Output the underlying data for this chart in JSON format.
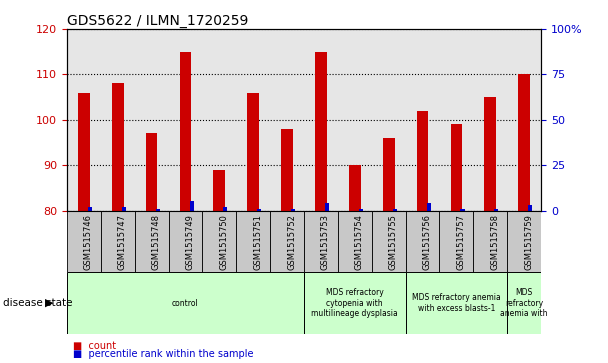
{
  "title": "GDS5622 / ILMN_1720259",
  "samples": [
    "GSM1515746",
    "GSM1515747",
    "GSM1515748",
    "GSM1515749",
    "GSM1515750",
    "GSM1515751",
    "GSM1515752",
    "GSM1515753",
    "GSM1515754",
    "GSM1515755",
    "GSM1515756",
    "GSM1515757",
    "GSM1515758",
    "GSM1515759"
  ],
  "count_values": [
    106,
    108,
    97,
    115,
    89,
    106,
    98,
    115,
    90,
    96,
    102,
    99,
    105,
    110
  ],
  "percentile_values": [
    2,
    2,
    1,
    5,
    2,
    1,
    1,
    4,
    1,
    1,
    4,
    1,
    1,
    3
  ],
  "y_min": 80,
  "y_max": 120,
  "y_ticks": [
    80,
    90,
    100,
    110,
    120
  ],
  "y2_ticks_labels": [
    "0",
    "25",
    "50",
    "75",
    "100%"
  ],
  "y2_ticks_vals": [
    0,
    25,
    50,
    75,
    100
  ],
  "count_color": "#cc0000",
  "percentile_color": "#0000cc",
  "bg_color": "#c8c8c8",
  "plot_bg": "#ffffff",
  "disease_groups": [
    {
      "label": "control",
      "start": 0,
      "end": 7
    },
    {
      "label": "MDS refractory\ncytopenia with\nmultilineage dysplasia",
      "start": 7,
      "end": 10
    },
    {
      "label": "MDS refractory anemia\nwith excess blasts-1",
      "start": 10,
      "end": 13
    },
    {
      "label": "MDS\nrefractory\nanemia with",
      "start": 13,
      "end": 14
    }
  ],
  "disease_group_color": "#ccffcc",
  "legend_count_label": "count",
  "legend_percentile_label": "percentile rank within the sample",
  "disease_state_label": "disease state"
}
